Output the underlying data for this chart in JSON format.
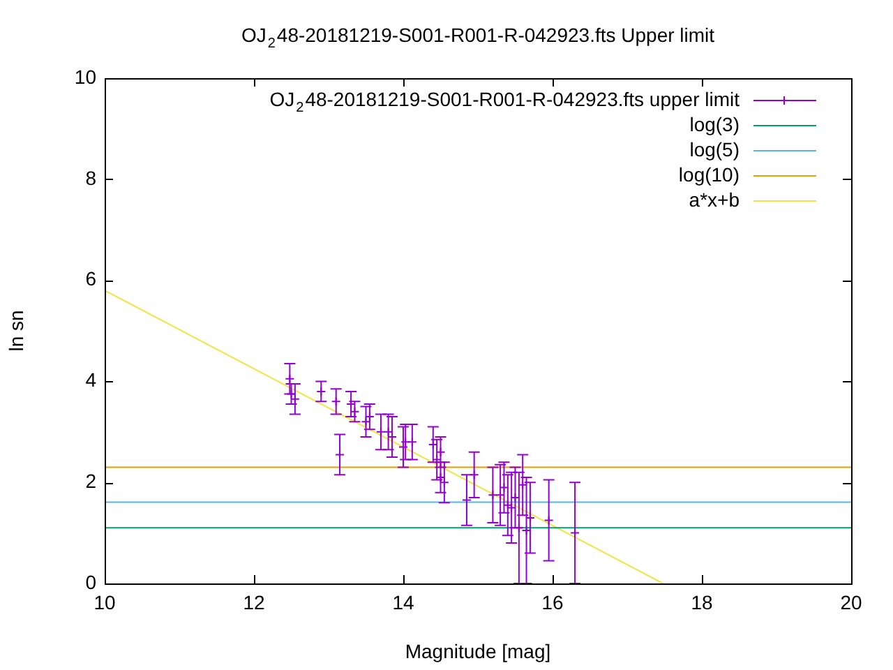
{
  "chart_data": {
    "type": "scatter",
    "title": "OJ$_{2}$48-20181219-S001-R001-R-042923.fts Upper limit",
    "xlabel": "Magnitude [mag]",
    "ylabel": "ln sn",
    "xlim": [
      10,
      20
    ],
    "xticks": [
      10,
      12,
      14,
      16,
      18,
      20
    ],
    "ylim": [
      0,
      10
    ],
    "yticks": [
      0,
      2,
      4,
      6,
      8,
      10
    ],
    "grid": false,
    "legend": "top right",
    "marker": "cross",
    "series": [
      {
        "name": "OJ$_{2}$48-20181219-S001-R001-R-042923.fts upper limit",
        "color": "#9400d3",
        "x": [
          12.48,
          12.5,
          12.55,
          12.9,
          13.1,
          13.15,
          13.3,
          13.35,
          13.5,
          13.55,
          13.7,
          13.8,
          13.85,
          14.0,
          14.03,
          14.12,
          14.4,
          14.45,
          14.5,
          14.5,
          14.55,
          14.85,
          14.95,
          15.2,
          15.3,
          15.35,
          15.4,
          15.45,
          15.5,
          15.55,
          15.6,
          15.65,
          15.7,
          15.95,
          16.3
        ],
        "values": [
          4.05,
          3.75,
          3.65,
          3.8,
          3.6,
          2.55,
          3.55,
          3.4,
          3.2,
          3.3,
          3.0,
          3.0,
          2.9,
          2.7,
          2.8,
          2.8,
          2.75,
          2.45,
          2.6,
          2.1,
          2.0,
          1.65,
          2.15,
          1.75,
          1.75,
          1.9,
          1.55,
          1.5,
          1.7,
          1.1,
          1.95,
          1.05,
          1.3,
          1.25,
          1.0
        ],
        "errors": [
          0.3,
          0.2,
          0.3,
          0.2,
          0.25,
          0.4,
          0.25,
          0.2,
          0.3,
          0.25,
          0.35,
          0.35,
          0.4,
          0.4,
          0.35,
          0.35,
          0.35,
          0.4,
          0.3,
          0.3,
          0.4,
          0.5,
          0.45,
          0.55,
          0.6,
          0.5,
          0.6,
          0.7,
          0.6,
          1.1,
          0.6,
          1.05,
          0.7,
          0.8,
          1.0
        ]
      },
      {
        "name": "log(3)",
        "type": "line",
        "color": "#009e73",
        "x": [
          10,
          20
        ],
        "marker": "none",
        "values": [
          1.1,
          1.1
        ]
      },
      {
        "name": "log(5)",
        "type": "line",
        "color": "#56b4e9",
        "x": [
          10,
          20
        ],
        "marker": "none",
        "values": [
          1.61,
          1.61
        ]
      },
      {
        "name": "log(10)",
        "type": "line",
        "color": "#e69f00",
        "x": [
          10,
          20
        ],
        "marker": "none",
        "values": [
          2.3,
          2.3
        ]
      },
      {
        "name": "a*x+b",
        "type": "line",
        "color": "#f0e442",
        "x": [
          10,
          17.48
        ],
        "marker": "none",
        "values": [
          5.8,
          0
        ]
      }
    ]
  }
}
